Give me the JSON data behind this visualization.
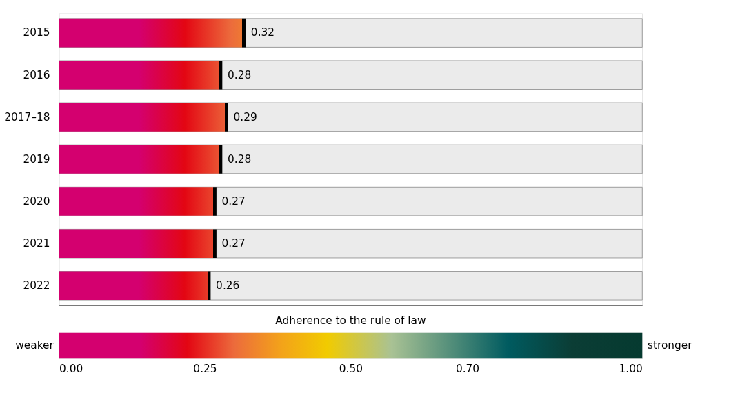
{
  "chart_data": {
    "type": "bar",
    "orientation": "horizontal",
    "categories": [
      "2015",
      "2016",
      "2017–18",
      "2019",
      "2020",
      "2021",
      "2022"
    ],
    "series": [
      {
        "color": "#e30613",
        "values": [
          0.32,
          0.28,
          0.29,
          0.28,
          0.27,
          0.27,
          0.26
        ]
      }
    ],
    "data_labels": true,
    "xlim": [
      0,
      1
    ],
    "xticks": [
      {
        "value": 0,
        "label": "0.00"
      },
      {
        "value": 0.25,
        "label": "0.25"
      },
      {
        "value": 0.5,
        "label": "0.50"
      },
      {
        "value": 0.7,
        "label": "0.70"
      },
      {
        "value": 1,
        "label": "1.00"
      }
    ],
    "clabel": "Adherence to the rule of law",
    "annotations": [
      "weaker",
      "stronger"
    ],
    "grid": false
  }
}
